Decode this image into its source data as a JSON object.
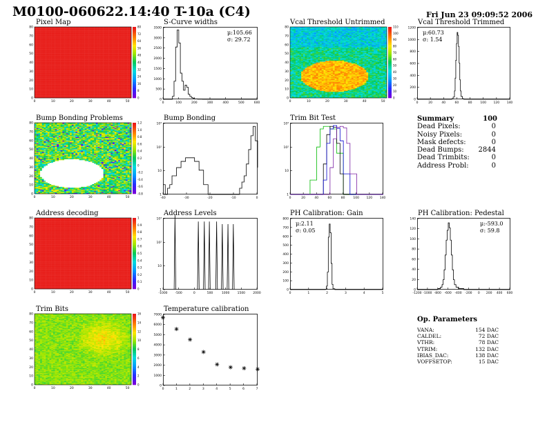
{
  "header": {
    "title": "M0100-060622.14:40 T-10a (C4)",
    "date": "Fri Jun 23 09:09:52 2006"
  },
  "panels": {
    "pixel_map": {
      "title": "Pixel Map",
      "yticks": [
        "0",
        "10",
        "20",
        "30",
        "40",
        "50",
        "60",
        "70",
        "80"
      ],
      "xticks": [
        "0",
        "10",
        "20",
        "30",
        "40",
        "50"
      ],
      "zticks": [
        "0",
        "8",
        "16",
        "24",
        "32",
        "40",
        "48",
        "56",
        "64",
        "72",
        "80"
      ]
    },
    "scurve": {
      "title": "S-Curve widths",
      "mu": "μ:105.66",
      "sigma": "σ: 29.72",
      "xticks": [
        "0",
        "100",
        "200",
        "300",
        "400",
        "500",
        "600"
      ],
      "yticks": [
        "0",
        "500",
        "1000",
        "1500",
        "2000",
        "2500",
        "3000",
        "3500"
      ]
    },
    "vcal_untrimmed": {
      "title": "Vcal Threshold Untrimmed",
      "yticks": [
        "0",
        "10",
        "20",
        "30",
        "40",
        "50",
        "60",
        "70",
        "80"
      ],
      "xticks": [
        "0",
        "10",
        "20",
        "30",
        "40",
        "50"
      ],
      "zticks": [
        "0",
        "10",
        "20",
        "30",
        "40",
        "50",
        "60",
        "70",
        "80",
        "90",
        "100",
        "110"
      ]
    },
    "vcal_trimmed": {
      "title": "Vcal Threshold Trimmed",
      "mu": "μ:60.73",
      "sigma": "σ: 1.54",
      "xticks": [
        "0",
        "20",
        "40",
        "60",
        "80",
        "100",
        "120",
        "140"
      ],
      "yticks": [
        "0",
        "200",
        "400",
        "600",
        "800",
        "1000",
        "1200"
      ]
    },
    "bump_problems": {
      "title": "Bump Bonding Problems",
      "yticks": [
        "0",
        "10",
        "20",
        "30",
        "40",
        "50",
        "60",
        "70",
        "80"
      ],
      "xticks": [
        "0",
        "10",
        "20",
        "30",
        "40",
        "50"
      ],
      "zticks": [
        "-0.8",
        "-0.6",
        "-0.4",
        "-0.2",
        "0",
        "0.2",
        "0.4",
        "0.6",
        "0.8",
        "1.0",
        "1.2"
      ]
    },
    "bump_bonding": {
      "title": "Bump Bonding",
      "xticks": [
        "-40",
        "-30",
        "-20",
        "-10",
        "0"
      ],
      "yticks": [
        "1",
        "10",
        "10²",
        "10³"
      ]
    },
    "trim_bit": {
      "title": "Trim Bit Test",
      "xticks": [
        "0",
        "20",
        "40",
        "60",
        "80",
        "100",
        "120",
        "140"
      ],
      "yticks": [
        "1",
        "10",
        "10²",
        "10³"
      ]
    },
    "address_decoding": {
      "title": "Address decoding",
      "yticks": [
        "0",
        "10",
        "20",
        "30",
        "40",
        "50",
        "60",
        "70",
        "80"
      ],
      "xticks": [
        "0",
        "10",
        "20",
        "30",
        "40",
        "50"
      ],
      "zticks": [
        "0",
        "0.1",
        "0.2",
        "0.3",
        "0.4",
        "0.5",
        "0.6",
        "0.7",
        "0.8",
        "0.9",
        "1"
      ]
    },
    "address_levels": {
      "title": "Address Levels",
      "xticks": [
        "-1000",
        "-500",
        "0",
        "500",
        "1000",
        "1500",
        "2000"
      ],
      "yticks": [
        "1",
        "10",
        "10²",
        "10³"
      ]
    },
    "ph_gain": {
      "title": "PH Calibration: Gain",
      "mu": "μ:2.11",
      "sigma": "σ: 0.05",
      "xticks": [
        "0",
        "1",
        "2",
        "3",
        "4",
        "5"
      ],
      "yticks": [
        "0",
        "100",
        "200",
        "300",
        "400",
        "500",
        "600",
        "700",
        "800"
      ]
    },
    "ph_pedestal": {
      "title": "PH Calibration: Pedestal",
      "mu": "μ:-593.0",
      "sigma": "σ: 59.8",
      "xticks": [
        "-1200",
        "-1000",
        "-800",
        "-600",
        "-400",
        "-200",
        "0",
        "200",
        "400",
        "600"
      ],
      "yticks": [
        "0",
        "20",
        "40",
        "60",
        "80",
        "100",
        "120",
        "140"
      ]
    },
    "trim_bits": {
      "title": "Trim Bits",
      "yticks": [
        "0",
        "10",
        "20",
        "30",
        "40",
        "50",
        "60",
        "70",
        "80"
      ],
      "xticks": [
        "0",
        "10",
        "20",
        "30",
        "40",
        "50"
      ],
      "zticks": [
        "0",
        "2",
        "4",
        "6",
        "8",
        "10",
        "12",
        "14",
        "16"
      ]
    },
    "temperature": {
      "title": "Temperature calibration",
      "xticks": [
        "0",
        "1",
        "2",
        "3",
        "4",
        "5",
        "6",
        "7"
      ],
      "yticks": [
        "0",
        "1000",
        "2000",
        "3000",
        "4000",
        "5000",
        "6000",
        "7000"
      ]
    }
  },
  "summary": {
    "title": "Summary",
    "total": "100",
    "rows": [
      {
        "label": "Dead Pixels:",
        "value": "0"
      },
      {
        "label": "Noisy Pixels:",
        "value": "0"
      },
      {
        "label": "Mask defects:",
        "value": "0"
      },
      {
        "label": "Dead Bumps:",
        "value": "2844"
      },
      {
        "label": "Dead Trimbits:",
        "value": "0"
      },
      {
        "label": "Address Probl:",
        "value": "0"
      }
    ]
  },
  "op_parameters": {
    "title": "Op. Parameters",
    "rows": [
      {
        "label": "VANA:",
        "value": "154 DAC"
      },
      {
        "label": "CALDEL:",
        "value": "72 DAC"
      },
      {
        "label": "VTHR:",
        "value": "78 DAC"
      },
      {
        "label": "VTRIM:",
        "value": "132 DAC"
      },
      {
        "label": "IBIAS_DAC:",
        "value": "138 DAC"
      },
      {
        "label": "VOFFSETOP:",
        "value": "15 DAC"
      }
    ]
  },
  "chart_data": [
    {
      "type": "heatmap",
      "title": "Pixel Map",
      "xlim": [
        0,
        52
      ],
      "ylim": [
        0,
        80
      ],
      "zlim": [
        0,
        80
      ],
      "pattern": "uniform",
      "colors": [
        "#e8201c"
      ]
    },
    {
      "type": "line",
      "title": "S-Curve widths",
      "xlim": [
        0,
        600
      ],
      "ylim": [
        0,
        3600
      ],
      "x": [
        0,
        20,
        40,
        60,
        70,
        80,
        90,
        100,
        110,
        120,
        130,
        140,
        150,
        160,
        170,
        180,
        190,
        200,
        220,
        250,
        300,
        600
      ],
      "y": [
        0,
        0,
        0,
        150,
        900,
        2600,
        3450,
        2800,
        1300,
        900,
        450,
        700,
        600,
        250,
        150,
        80,
        40,
        20,
        5,
        0,
        0,
        0
      ]
    },
    {
      "type": "heatmap",
      "title": "Vcal Threshold Untrimmed",
      "xlim": [
        0,
        52
      ],
      "ylim": [
        0,
        80
      ],
      "zlim": [
        0,
        110
      ],
      "pattern": "blob-high"
    },
    {
      "type": "line",
      "title": "Vcal Threshold Trimmed",
      "xlim": [
        0,
        140
      ],
      "ylim": [
        0,
        1300
      ],
      "x": [
        0,
        50,
        52,
        54,
        56,
        57,
        58,
        59,
        60,
        61,
        62,
        63,
        64,
        65,
        66,
        68,
        70,
        140
      ],
      "y": [
        0,
        0,
        10,
        40,
        150,
        380,
        700,
        1000,
        1200,
        1150,
        950,
        650,
        350,
        150,
        50,
        10,
        0,
        0
      ]
    },
    {
      "type": "heatmap",
      "title": "Bump Bonding Problems",
      "xlim": [
        0,
        52
      ],
      "ylim": [
        0,
        80
      ],
      "zlim": [
        -0.8,
        1.2
      ],
      "pattern": "noisy-hole"
    },
    {
      "type": "line",
      "title": "Bump Bonding",
      "xlim": [
        -40,
        2
      ],
      "ylog": true,
      "ylim": [
        1,
        3000
      ],
      "x": [
        -40,
        -39,
        -38,
        -37,
        -36,
        -34,
        -32,
        -30,
        -28,
        -26,
        -24,
        -22,
        -20,
        -18,
        -16,
        -14,
        -12,
        -10,
        -9,
        -8,
        -7,
        -6,
        -5,
        -4,
        -3,
        -2,
        -1,
        0,
        1,
        2
      ],
      "y": [
        3,
        1,
        2,
        3,
        8,
        20,
        40,
        60,
        60,
        40,
        15,
        3,
        1,
        1,
        1,
        1,
        1,
        1,
        1,
        1,
        1,
        2,
        4,
        8,
        30,
        150,
        700,
        2000,
        400,
        20
      ]
    },
    {
      "type": "line",
      "title": "Trim Bit Test",
      "xlim": [
        0,
        140
      ],
      "ylog": true,
      "ylim": [
        1,
        3000
      ],
      "series": [
        {
          "color": "#00bb00",
          "x": [
            0,
            10,
            20,
            30,
            40,
            45,
            50,
            60,
            70,
            80,
            90,
            140
          ],
          "y": [
            1,
            1,
            1,
            5,
            200,
            1500,
            2000,
            1500,
            100,
            1,
            1,
            1
          ]
        },
        {
          "color": "#000000",
          "x": [
            0,
            20,
            30,
            40,
            50,
            55,
            60,
            65,
            70,
            75,
            80,
            90,
            140
          ],
          "y": [
            1,
            1,
            1,
            1,
            30,
            800,
            2000,
            1800,
            300,
            10,
            1,
            1,
            1
          ]
        },
        {
          "color": "#0000cc",
          "x": [
            0,
            30,
            40,
            50,
            55,
            60,
            65,
            70,
            75,
            80,
            90,
            140
          ],
          "y": [
            1,
            1,
            1,
            5,
            300,
            1500,
            2200,
            1600,
            400,
            10,
            1,
            1
          ]
        },
        {
          "color": "#7a1fa2",
          "x": [
            0,
            40,
            50,
            60,
            65,
            70,
            75,
            80,
            85,
            90,
            100,
            140
          ],
          "y": [
            1,
            1,
            1,
            20,
            500,
            1800,
            2000,
            1700,
            300,
            10,
            1,
            1
          ]
        }
      ]
    },
    {
      "type": "heatmap",
      "title": "Address decoding",
      "xlim": [
        0,
        52
      ],
      "ylim": [
        0,
        80
      ],
      "zlim": [
        0,
        1
      ],
      "pattern": "uniform",
      "colors": [
        "#e8201c"
      ]
    },
    {
      "type": "line",
      "title": "Address Levels",
      "xlim": [
        -1000,
        2000
      ],
      "ylog": true,
      "ylim": [
        1,
        3000
      ],
      "peaks": [
        -620,
        120,
        310,
        470,
        700,
        880,
        1060,
        1230
      ],
      "peak_heights": [
        4000,
        2000,
        2000,
        2000,
        2000,
        1500,
        1500,
        1500
      ]
    },
    {
      "type": "line",
      "title": "PH Calibration: Gain",
      "xlim": [
        0,
        5
      ],
      "ylim": [
        0,
        820
      ],
      "x": [
        0,
        1.8,
        1.9,
        1.95,
        2.0,
        2.05,
        2.1,
        2.15,
        2.2,
        2.25,
        2.3,
        2.4,
        5
      ],
      "y": [
        0,
        0,
        5,
        40,
        200,
        600,
        750,
        650,
        300,
        60,
        10,
        0,
        0
      ]
    },
    {
      "type": "line",
      "title": "PH Calibration: Pedestal",
      "xlim": [
        -1200,
        600
      ],
      "ylim": [
        0,
        145
      ],
      "x": [
        -1200,
        -900,
        -800,
        -750,
        -720,
        -700,
        -680,
        -660,
        -640,
        -620,
        -600,
        -580,
        -560,
        -540,
        -520,
        -500,
        -480,
        -450,
        -400,
        -300,
        600
      ],
      "y": [
        0,
        0,
        2,
        5,
        10,
        20,
        40,
        70,
        100,
        120,
        135,
        125,
        100,
        70,
        40,
        20,
        10,
        5,
        2,
        0,
        0
      ]
    },
    {
      "type": "heatmap",
      "title": "Trim Bits",
      "xlim": [
        0,
        52
      ],
      "ylim": [
        0,
        80
      ],
      "zlim": [
        0,
        16
      ],
      "pattern": "smooth-mid"
    },
    {
      "type": "scatter",
      "title": "Temperature calibration",
      "xlim": [
        0,
        7
      ],
      "ylim": [
        0,
        7500
      ],
      "x": [
        0,
        1,
        2,
        3,
        4,
        5,
        6,
        7
      ],
      "y": [
        7100,
        5900,
        4800,
        3500,
        2200,
        1900,
        1800,
        1700
      ]
    }
  ]
}
